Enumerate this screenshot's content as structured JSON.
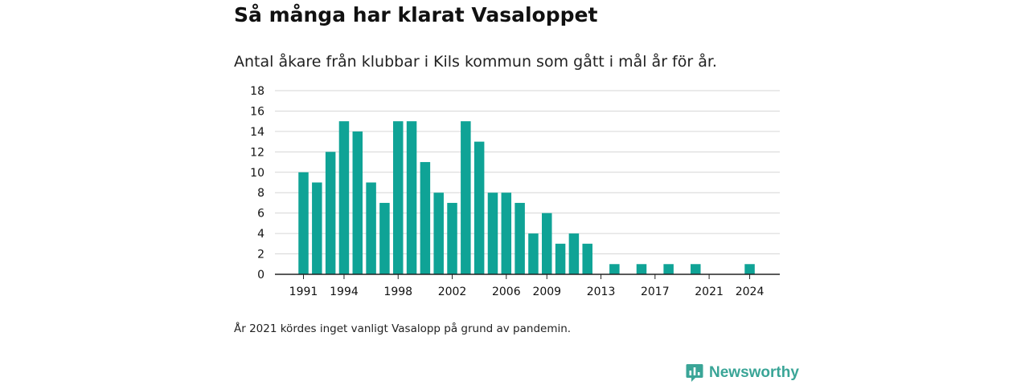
{
  "title": "Så många har klarat Vasaloppet",
  "subtitle": "Antal åkare från klubbar i Kils kommun som gått i mål år för år.",
  "note": "År 2021 kördes inget vanligt Vasalopp på grund av pandemin.",
  "brand": {
    "name": "Newsworthy",
    "icon": "newsworthy-logo-icon",
    "color": "#3aa597"
  },
  "chart_data": {
    "type": "bar",
    "title": "Så många har klarat Vasaloppet",
    "subtitle": "Antal åkare från klubbar i Kils kommun som gått i mål år för år.",
    "xlabel": "",
    "ylabel": "",
    "x": [
      1991,
      1992,
      1993,
      1994,
      1995,
      1996,
      1997,
      1998,
      1999,
      2000,
      2001,
      2002,
      2003,
      2004,
      2005,
      2006,
      2007,
      2008,
      2009,
      2010,
      2011,
      2012,
      2013,
      2014,
      2015,
      2016,
      2017,
      2018,
      2019,
      2020,
      2021,
      2022,
      2023,
      2024
    ],
    "values": [
      10,
      9,
      12,
      15,
      14,
      9,
      7,
      15,
      15,
      11,
      8,
      7,
      15,
      13,
      8,
      8,
      7,
      4,
      6,
      3,
      4,
      3,
      0,
      1,
      0,
      1,
      0,
      1,
      0,
      1,
      0,
      0,
      0,
      1
    ],
    "xlim": [
      1991,
      2024
    ],
    "ylim": [
      0,
      18
    ],
    "yticks": [
      0,
      2,
      4,
      6,
      8,
      10,
      12,
      14,
      16,
      18
    ],
    "xticks": [
      1991,
      1994,
      1998,
      2002,
      2006,
      2009,
      2013,
      2017,
      2021,
      2024
    ],
    "bar_color": "#0fa396",
    "grid": true,
    "legend": "none"
  }
}
